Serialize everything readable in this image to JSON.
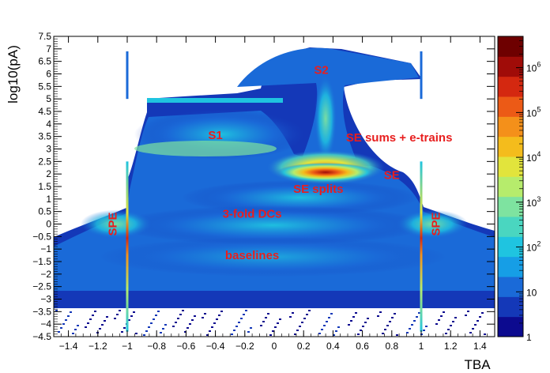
{
  "chart_data": {
    "type": "heatmap",
    "title": "",
    "xlabel": "TBA",
    "ylabel": "log10(pA)",
    "xlim": [
      -1.5,
      1.5
    ],
    "ylim": [
      -4.5,
      7.5
    ],
    "x_ticks": [
      -1.4,
      -1.2,
      -1,
      -0.8,
      -0.6,
      -0.4,
      -0.2,
      0,
      0.2,
      0.4,
      0.6,
      0.8,
      1,
      1.2,
      1.4
    ],
    "x_tick_labels": [
      "−1.4",
      "−1.2",
      "−1",
      "−0.8",
      "−0.6",
      "−0.4",
      "−0.2",
      "0",
      "0.2",
      "0.4",
      "0.6",
      "0.8",
      "1",
      "1.2",
      "1.4"
    ],
    "y_ticks": [
      -4.5,
      -4,
      -3.5,
      -3,
      -2.5,
      -2,
      -1.5,
      -1,
      -0.5,
      0,
      0.5,
      1,
      1.5,
      2,
      2.5,
      3,
      3.5,
      4,
      4.5,
      5,
      5.5,
      6,
      6.5,
      7,
      7.5
    ],
    "y_tick_labels": [
      "−4.5",
      "−4",
      "−3.5",
      "−3",
      "−2.5",
      "−2",
      "−1.5",
      "−1",
      "−0.5",
      "0",
      "0.5",
      "1",
      "1.5",
      "2",
      "2.5",
      "3",
      "3.5",
      "4",
      "4.5",
      "5",
      "5.5",
      "6",
      "6.5",
      "7",
      "7.5"
    ],
    "colorbar": {
      "scale": "log",
      "range": [
        1,
        5000000
      ],
      "ticks": [
        1,
        10,
        100,
        1000,
        10000,
        100000,
        1000000
      ],
      "tick_labels": [
        {
          "base": "1",
          "exp": ""
        },
        {
          "base": "10",
          "exp": ""
        },
        {
          "base": "10",
          "exp": "2"
        },
        {
          "base": "10",
          "exp": "3"
        },
        {
          "base": "10",
          "exp": "4"
        },
        {
          "base": "10",
          "exp": "5"
        },
        {
          "base": "10",
          "exp": "6"
        }
      ],
      "colors": [
        "#0c0a8f",
        "#1438b8",
        "#1a6ad8",
        "#169ee6",
        "#1fc4e0",
        "#4ad6c0",
        "#7ee3a0",
        "#b6ec6c",
        "#e2e43c",
        "#f4bc1c",
        "#f4901a",
        "#ec5a16",
        "#d42810",
        "#a00c08",
        "#6e0000"
      ]
    },
    "regions": [
      {
        "label": "S2",
        "x": 0.32,
        "y": 6.0
      },
      {
        "label": "S1",
        "x": -0.4,
        "y": 3.4
      },
      {
        "label": "SE sums + e-trains",
        "x": 0.85,
        "y": 3.3
      },
      {
        "label": "SE",
        "x": 0.8,
        "y": 1.8
      },
      {
        "label": "SE splits",
        "x": 0.3,
        "y": 1.25
      },
      {
        "label": "3-fold DCs",
        "x": -0.15,
        "y": 0.25
      },
      {
        "label": "baselines",
        "x": -0.15,
        "y": -1.4
      },
      {
        "label": "SPE",
        "x": -1.1,
        "y": 0.0,
        "rotated": true
      },
      {
        "label": "SPE",
        "x": 1.1,
        "y": 0.0,
        "rotated": true
      }
    ],
    "grid": false,
    "legend": "colorbar-right"
  }
}
